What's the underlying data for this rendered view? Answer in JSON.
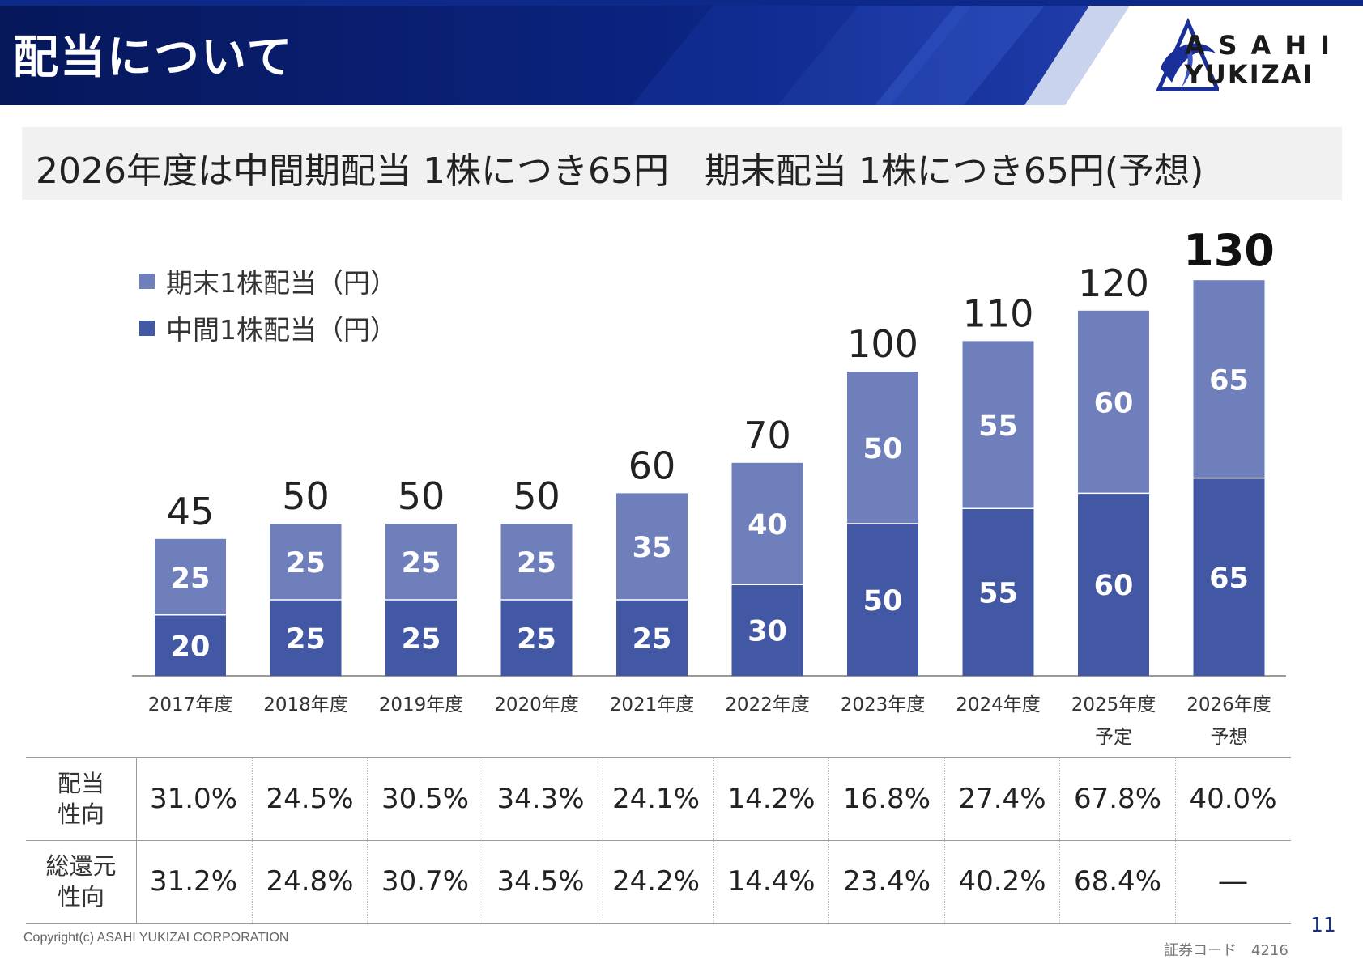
{
  "header": {
    "title": "配当について",
    "logo_line1": "ASAHI",
    "logo_line2": "YUKIZAI"
  },
  "subtitle": "2026年度は中間期配当 1株につき65円　期末配当 1株につき65円(予想)",
  "colors": {
    "header_bg": "#0a1e6e",
    "year_end": "#6f7fbc",
    "interim": "#4258a5",
    "subtitle_bg": "#f1f1f1",
    "page_number": "#1a2f8a"
  },
  "legend": [
    {
      "label": "期末1株配当（円）",
      "color": "#6f7fbc"
    },
    {
      "label": "中間1株配当（円）",
      "color": "#4258a5"
    }
  ],
  "chart_data": {
    "type": "bar",
    "stacked": true,
    "categories": [
      "2017年度",
      "2018年度",
      "2019年度",
      "2020年度",
      "2021年度",
      "2022年度",
      "2023年度",
      "2024年度",
      "2025年度",
      "2026年度"
    ],
    "category_sublabels": [
      "",
      "",
      "",
      "",
      "",
      "",
      "",
      "",
      "予定",
      "予想"
    ],
    "series": [
      {
        "name": "中間1株配当（円）",
        "values": [
          20,
          25,
          25,
          25,
          25,
          30,
          50,
          55,
          60,
          65
        ]
      },
      {
        "name": "期末1株配当（円）",
        "values": [
          25,
          25,
          25,
          25,
          35,
          40,
          50,
          55,
          60,
          65
        ]
      }
    ],
    "totals": [
      45,
      50,
      50,
      50,
      60,
      70,
      100,
      110,
      120,
      130
    ],
    "ylim": [
      0,
      130
    ],
    "grid": false,
    "legend_position": "top-left"
  },
  "table": {
    "rows": [
      {
        "header": [
          "配当",
          "性向"
        ],
        "values": [
          "31.0%",
          "24.5%",
          "30.5%",
          "34.3%",
          "24.1%",
          "14.2%",
          "16.8%",
          "27.4%",
          "67.8%",
          "40.0%"
        ]
      },
      {
        "header": [
          "総還元",
          "性向"
        ],
        "values": [
          "31.2%",
          "24.8%",
          "30.7%",
          "34.5%",
          "24.2%",
          "14.4%",
          "23.4%",
          "40.2%",
          "68.4%",
          "―"
        ]
      }
    ]
  },
  "footer": {
    "copyright": "Copyright(c) ASAHI YUKIZAI CORPORATION",
    "stock_code": "証券コード　4216",
    "page_number": "11"
  }
}
